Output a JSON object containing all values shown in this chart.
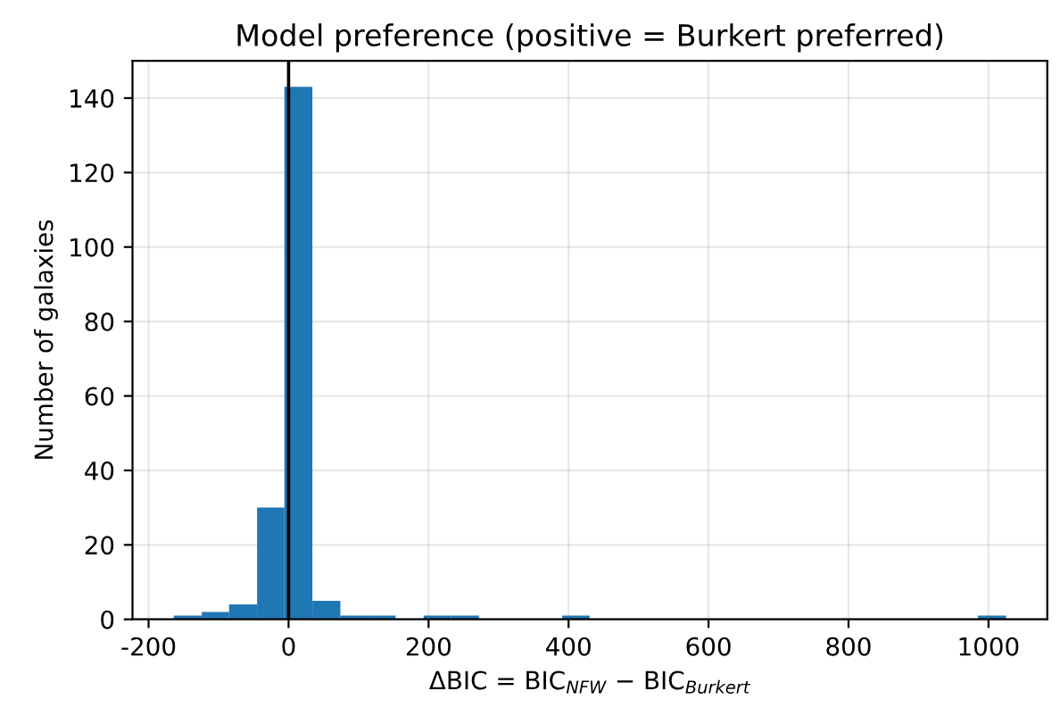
{
  "chart_data": {
    "type": "histogram",
    "title": "Model preference (positive = Burkert preferred)",
    "xlabel": "ΔBIC = BIC$_{NFW}$ − BIC$_{Burkert}$",
    "ylabel": "Number of galaxies",
    "bins": [
      -164,
      -124,
      -85,
      -45,
      -6,
      34,
      74,
      113,
      153,
      193,
      232,
      272,
      391,
      430,
      985,
      1025
    ],
    "values": [
      1,
      2,
      4,
      30,
      143,
      5,
      1,
      1,
      0,
      1,
      1,
      0,
      1,
      0,
      1
    ],
    "color": "#1f77b4",
    "xlim": [
      -223,
      1084
    ],
    "xticks": [
      -200,
      0,
      200,
      400,
      600,
      800,
      1000
    ],
    "ylim": [
      0,
      150
    ],
    "yticks": [
      0,
      20,
      40,
      60,
      80,
      100,
      120,
      140
    ],
    "grid": true,
    "ref_lines": [
      {
        "axis": "x",
        "value": 0,
        "color": "#000000"
      }
    ]
  }
}
